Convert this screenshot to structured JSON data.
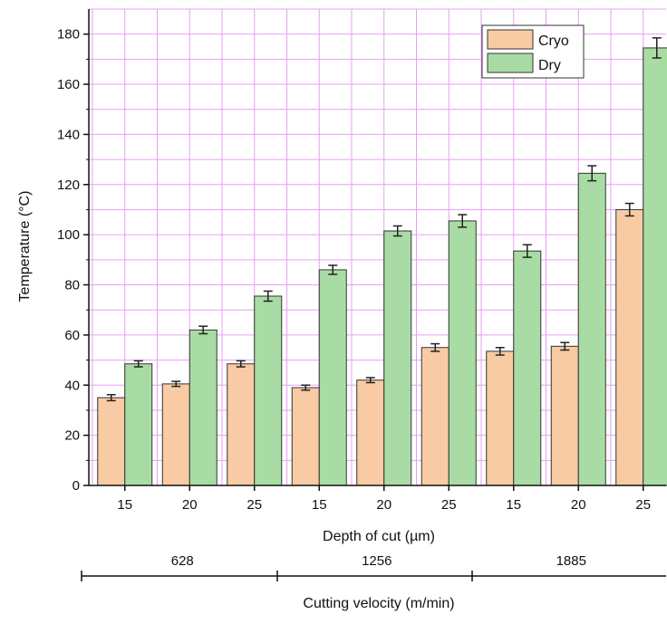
{
  "chart_data": {
    "type": "bar",
    "xlabel": "Depth of cut (µm)",
    "ylabel": "Temperature (°C)",
    "secondary_xlabel": "Cutting velocity (m/min)",
    "ylim": [
      0,
      190
    ],
    "yticks": [
      "0",
      "20",
      "40",
      "60",
      "80",
      "100",
      "120",
      "140",
      "160",
      "180"
    ],
    "grid": true,
    "legend_position": "top-right",
    "categories": [
      "15",
      "20",
      "25",
      "15",
      "20",
      "25",
      "15",
      "20",
      "25"
    ],
    "groups": [
      {
        "label": "628",
        "span": [
          0,
          2
        ]
      },
      {
        "label": "1256",
        "span": [
          3,
          5
        ]
      },
      {
        "label": "1885",
        "span": [
          6,
          8
        ]
      }
    ],
    "series": [
      {
        "name": "Cryo",
        "color": "#F9CBA4",
        "values": [
          35,
          40.5,
          48.5,
          39,
          42,
          55,
          53.5,
          55.5,
          110
        ],
        "errors": [
          1.2,
          1.0,
          1.2,
          1.0,
          1.0,
          1.5,
          1.5,
          1.5,
          2.5
        ]
      },
      {
        "name": "Dry",
        "color": "#A9DCA4",
        "values": [
          48.5,
          62,
          75.5,
          86,
          101.5,
          105.5,
          93.5,
          124.5,
          174.5
        ],
        "errors": [
          1.2,
          1.5,
          2.0,
          1.8,
          2.0,
          2.5,
          2.5,
          3.0,
          4.0
        ]
      }
    ],
    "grid_color": "#E6A0F0"
  }
}
